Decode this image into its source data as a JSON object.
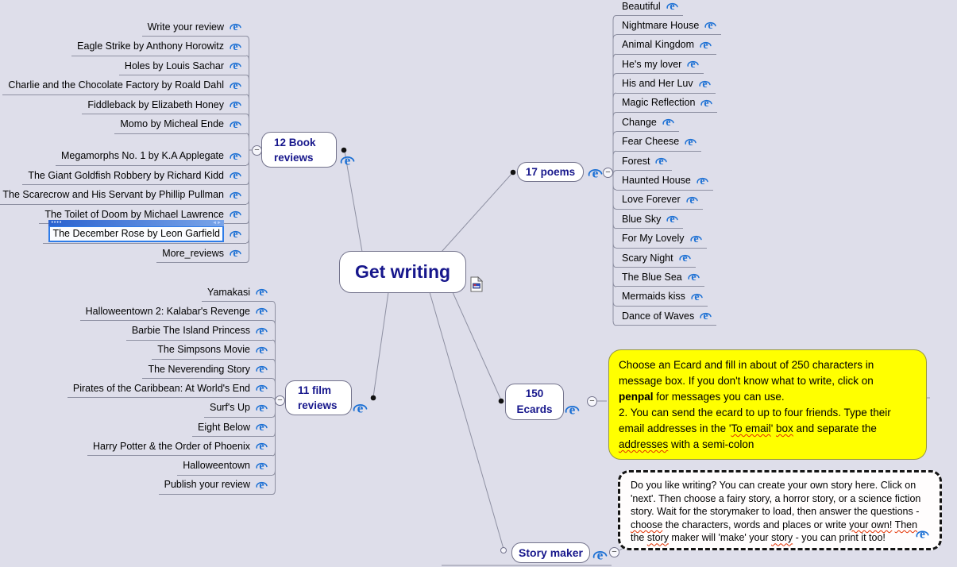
{
  "center": {
    "label": "Get writing"
  },
  "branches": [
    {
      "id": "books",
      "label": "12 Book\nreviews",
      "selected_index": 10,
      "items": [
        "Write your review",
        "Eagle Strike by Anthony Horowitz",
        "Holes by Louis Sachar",
        "Charlie and the Chocolate Factory by Roald Dahl",
        "Fiddleback by Elizabeth Honey",
        "Momo by Micheal Ende",
        "Megamorphs No. 1 by K.A Applegate",
        "The Giant Goldfish Robbery by Richard Kidd",
        "The Scarecrow and His Servant by Phillip Pullman",
        "The Toilet of Doom by Michael Lawrence",
        "The December Rose by Leon Garfield",
        "More_reviews"
      ]
    },
    {
      "id": "poems",
      "label": "17 poems",
      "items": [
        "Beautiful",
        "Nightmare House",
        "Animal Kingdom",
        "He's my lover",
        "His and Her Luv",
        "Magic Reflection",
        "Change",
        "Fear Cheese",
        "Forest",
        "Haunted House",
        "Love Forever",
        "Blue Sky",
        "For My Lovely",
        "Scary Night",
        "The Blue Sea",
        "Mermaids kiss",
        "Dance of Waves"
      ]
    },
    {
      "id": "films",
      "label": "11 film\nreviews",
      "items": [
        "Yamakasi",
        "Halloweentown 2: Kalabar's Revenge",
        "Barbie The Island Princess",
        "The Simpsons Movie",
        "The Neverending Story",
        "Pirates of the Caribbean: At World's End",
        "Surf's Up",
        "Eight Below",
        "Harry Potter & the Order of Phoenix",
        "Halloweentown",
        "Publish your review"
      ]
    },
    {
      "id": "ecards",
      "label": "150\nEcards",
      "note": {
        "lines": [
          [
            {
              "t": "Choose an Ecard and fill in about of 250 characters in"
            }
          ],
          [
            {
              "t": "message box. If you don't know what to write, click on"
            }
          ],
          [
            {
              "t": "penpal",
              "b": true
            },
            {
              "t": " for messages you can use."
            }
          ],
          [
            {
              "t": "2. You can send the ecard to up to four friends. Type their"
            }
          ],
          [
            {
              "t": "email addresses in the '"
            },
            {
              "t": "To email",
              "w": true
            },
            {
              "t": "' "
            },
            {
              "t": "box",
              "w": true
            },
            {
              "t": " and separate the"
            }
          ],
          [
            {
              "t": "addresses",
              "w": true
            },
            {
              "t": " with a semi-colon"
            }
          ]
        ]
      }
    },
    {
      "id": "story",
      "label": "Story maker",
      "note": {
        "lines": [
          [
            {
              "t": "Do you like writing? You can create your own story here. Click on"
            }
          ],
          [
            {
              "t": "'next'. Then choose a fairy story, a horror story, or a science fiction"
            }
          ],
          [
            {
              "t": "story. Wait for the storymaker to load, then answer the questions -"
            }
          ],
          [
            {
              "t": "choose",
              "w": true
            },
            {
              "t": " the characters, words and places or write "
            },
            {
              "t": "your own!",
              "w": true
            },
            {
              "t": " "
            },
            {
              "t": "Then",
              "w": true
            }
          ],
          [
            {
              "t": "the "
            },
            {
              "t": "story",
              "w": true
            },
            {
              "t": " maker will 'make' your "
            },
            {
              "t": "story",
              "w": true
            },
            {
              "t": " - you can print it too!"
            }
          ]
        ]
      }
    }
  ],
  "icons": {
    "link_icon": "internet-explorer-icon",
    "center_attachment": "document-icon",
    "collapse_glyph": "−",
    "selection_dots": "••••",
    "selection_arrows": "◄►"
  },
  "colors": {
    "background": "#dedeea",
    "hub_text_navy": "#17178c",
    "connector_gray": "#8e90a2",
    "selection_blue": "#2e7ce8",
    "note_yellow": "#ffff00",
    "spellcheck_red": "#e33000"
  }
}
